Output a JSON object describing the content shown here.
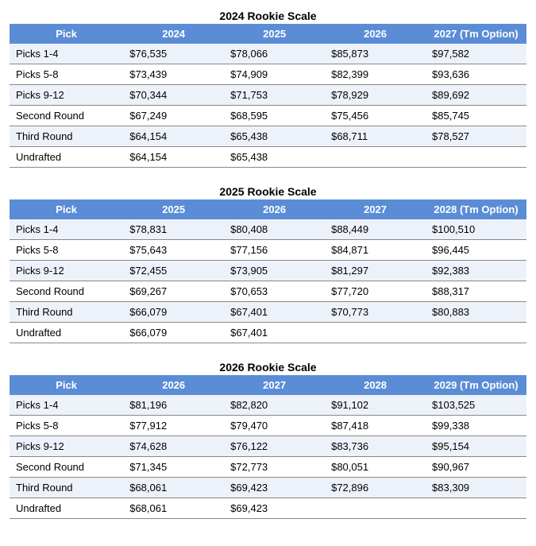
{
  "tables": [
    {
      "title": "2024 Rookie Scale",
      "header_bg": "#5b8dd6",
      "header_fg": "#ffffff",
      "row_stripe_a": "#edf2fa",
      "row_stripe_b": "#ffffff",
      "columns": [
        "Pick",
        "2024",
        "2025",
        "2026",
        "2027 (Tm Option)"
      ],
      "rows": [
        [
          "Picks 1-4",
          "$76,535",
          "$78,066",
          "$85,873",
          "$97,582"
        ],
        [
          "Picks 5-8",
          "$73,439",
          "$74,909",
          "$82,399",
          "$93,636"
        ],
        [
          "Picks 9-12",
          "$70,344",
          "$71,753",
          "$78,929",
          "$89,692"
        ],
        [
          "Second Round",
          "$67,249",
          "$68,595",
          "$75,456",
          "$85,745"
        ],
        [
          "Third Round",
          "$64,154",
          "$65,438",
          "$68,711",
          "$78,527"
        ],
        [
          "Undrafted",
          "$64,154",
          "$65,438",
          "",
          ""
        ]
      ]
    },
    {
      "title": "2025 Rookie Scale",
      "header_bg": "#5b8dd6",
      "header_fg": "#ffffff",
      "row_stripe_a": "#edf2fa",
      "row_stripe_b": "#ffffff",
      "columns": [
        "Pick",
        "2025",
        "2026",
        "2027",
        "2028 (Tm Option)"
      ],
      "rows": [
        [
          "Picks 1-4",
          "$78,831",
          "$80,408",
          "$88,449",
          "$100,510"
        ],
        [
          "Picks 5-8",
          "$75,643",
          "$77,156",
          "$84,871",
          "$96,445"
        ],
        [
          "Picks 9-12",
          "$72,455",
          "$73,905",
          "$81,297",
          "$92,383"
        ],
        [
          "Second Round",
          "$69,267",
          "$70,653",
          "$77,720",
          "$88,317"
        ],
        [
          "Third Round",
          "$66,079",
          "$67,401",
          "$70,773",
          "$80,883"
        ],
        [
          "Undrafted",
          "$66,079",
          "$67,401",
          "",
          ""
        ]
      ]
    },
    {
      "title": "2026 Rookie Scale",
      "header_bg": "#5b8dd6",
      "header_fg": "#ffffff",
      "row_stripe_a": "#edf2fa",
      "row_stripe_b": "#ffffff",
      "columns": [
        "Pick",
        "2026",
        "2027",
        "2028",
        "2029 (Tm Option)"
      ],
      "rows": [
        [
          "Picks 1-4",
          "$81,196",
          "$82,820",
          "$91,102",
          "$103,525"
        ],
        [
          "Picks 5-8",
          "$77,912",
          "$79,470",
          "$87,418",
          "$99,338"
        ],
        [
          "Picks 9-12",
          "$74,628",
          "$76,122",
          "$83,736",
          "$95,154"
        ],
        [
          "Second Round",
          "$71,345",
          "$72,773",
          "$80,051",
          "$90,967"
        ],
        [
          "Third Round",
          "$68,061",
          "$69,423",
          "$72,896",
          "$83,309"
        ],
        [
          "Undrafted",
          "$68,061",
          "$69,423",
          "",
          ""
        ]
      ]
    }
  ]
}
